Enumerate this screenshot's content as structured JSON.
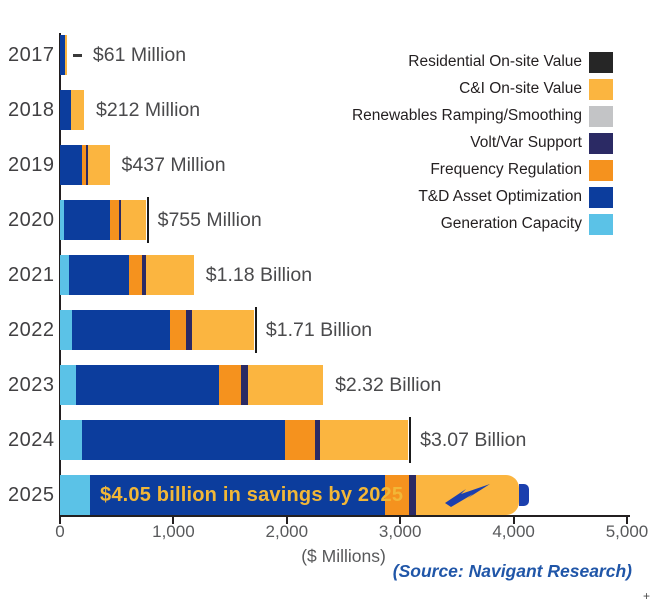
{
  "chart_data": {
    "type": "bar",
    "orientation": "horizontal",
    "title": "",
    "xlabel": "($ Millions)",
    "xlim": [
      0,
      5000
    ],
    "xticks": [
      0,
      1000,
      2000,
      3000,
      4000,
      5000
    ],
    "xtick_labels": [
      "0",
      "1,000",
      "2,000",
      "3,000",
      "4,000",
      "5,000"
    ],
    "grid": false,
    "legend_position": "top-right",
    "categories": [
      "2017",
      "2018",
      "2019",
      "2020",
      "2021",
      "2022",
      "2023",
      "2024",
      "2025"
    ],
    "series": [
      {
        "key": "generation_capacity",
        "name": "Generation Capacity",
        "color": "#5bc2e7",
        "values": [
          0,
          0,
          0,
          31,
          82,
          110,
          140,
          190,
          265
        ]
      },
      {
        "key": "td_asset_optimization",
        "name": "T&D Asset Optimization",
        "color": "#0c3d9d",
        "values": [
          45,
          100,
          190,
          410,
          525,
          860,
          1265,
          1795,
          2600
        ]
      },
      {
        "key": "frequency_regulation",
        "name": "Frequency Regulation",
        "color": "#f5921e",
        "values": [
          0,
          0,
          38,
          79,
          118,
          145,
          190,
          260,
          215
        ]
      },
      {
        "key": "volt_var_support",
        "name": "Volt/Var Support",
        "color": "#2b2a64",
        "values": [
          0,
          0,
          20,
          22,
          30,
          50,
          60,
          45,
          60
        ]
      },
      {
        "key": "renewables_ramping",
        "name": "Renewables Ramping/Smoothing",
        "color": "#c3c4c6",
        "values": [
          0,
          0,
          0,
          0,
          0,
          0,
          0,
          0,
          0
        ]
      },
      {
        "key": "ci_onsite_value",
        "name": "C&I On-site Value",
        "color": "#fbb540",
        "values": [
          16,
          112,
          189,
          213,
          425,
          545,
          665,
          780,
          910
        ]
      },
      {
        "key": "residential_onsite_value",
        "name": "Residential On-site Value",
        "color": "#262626",
        "values": [
          0,
          0,
          0,
          0,
          0,
          0,
          0,
          0,
          0
        ]
      }
    ],
    "totals": [
      61,
      212,
      437,
      755,
      1180,
      1710,
      2320,
      3070,
      4050
    ],
    "bar_labels": [
      "$61 Million",
      "$212 Million",
      "$437 Million",
      "$755 Million",
      "$1.18 Billion",
      "$1.71 Billion",
      "$2.32 Billion",
      "$3.07 Billion",
      ""
    ],
    "callouts": {
      "2017": "dash",
      "2020": "line",
      "2022": "line",
      "2024": "line"
    },
    "annotation_2025": "$4.05 billion in savings by 2025",
    "battery_year": "2025"
  },
  "legend": {
    "items": [
      {
        "label": "Residential On-site Value",
        "color": "#262626"
      },
      {
        "label": "C&I On-site Value",
        "color": "#fbb540"
      },
      {
        "label": "Renewables Ramping/Smoothing",
        "color": "#c3c4c6"
      },
      {
        "label": "Volt/Var Support",
        "color": "#2b2a64"
      },
      {
        "label": "Frequency Regulation",
        "color": "#f5921e"
      },
      {
        "label": "T&D Asset Optimization",
        "color": "#0c3d9d"
      },
      {
        "label": "Generation Capacity",
        "color": "#5bc2e7"
      }
    ]
  },
  "colors": {
    "axis": "#231f20",
    "tick_text": "#58595b",
    "year_text": "#414042",
    "value_text": "#4a4a4c",
    "annotation_text": "#f2b737",
    "battery_blue": "#1b3fae",
    "source_text": "#2056a8"
  },
  "source_note": "(Source: Navigant Research)",
  "corner_glyph": "+"
}
